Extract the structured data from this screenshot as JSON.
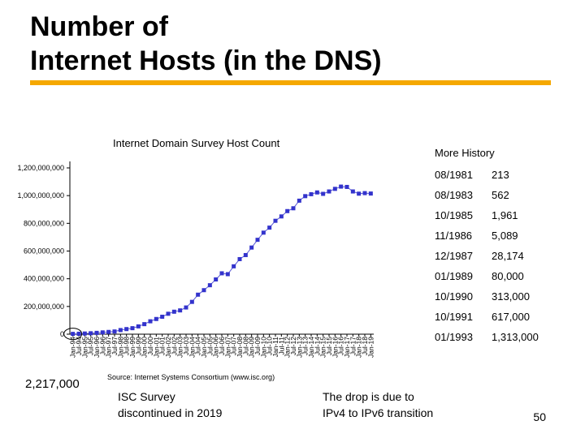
{
  "slide": {
    "title_line1": "Number of",
    "title_line2": "Internet Hosts (in the DNS)",
    "accent_color": "#f5a800",
    "page_number": "50"
  },
  "notes": {
    "peak_value": "2,217,000",
    "isc_note_line1": "ISC Survey",
    "isc_note_line2": "discontinued in 2019",
    "drop_note_line1": "The drop is due to",
    "drop_note_line2": "IPv4 to IPv6 transition"
  },
  "history": {
    "title": "More History",
    "rows": [
      {
        "date": "08/1981",
        "value": "213"
      },
      {
        "date": "08/1983",
        "value": "562"
      },
      {
        "date": "10/1985",
        "value": "1,961"
      },
      {
        "date": "11/1986",
        "value": "5,089"
      },
      {
        "date": "12/1987",
        "value": "28,174"
      },
      {
        "date": "01/1989",
        "value": "80,000"
      },
      {
        "date": "10/1990",
        "value": "313,000"
      },
      {
        "date": "10/1991",
        "value": "617,000"
      },
      {
        "date": "01/1993",
        "value": "1,313,000"
      }
    ]
  },
  "chart_data": {
    "type": "line",
    "title": "Internet Domain Survey Host Count",
    "source": "Source: Internet Systems Consortium (www.isc.org)",
    "xlabel": "",
    "ylabel": "",
    "ylim": [
      0,
      1200000000
    ],
    "yticks": [
      0,
      200000000,
      400000000,
      600000000,
      800000000,
      1000000000,
      1200000000
    ],
    "ytick_labels": [
      "0",
      "200,000,000",
      "400,000,000",
      "600,000,000",
      "800,000,000",
      "1,000,000,000",
      "1,200,000,000"
    ],
    "marker_color": "#3333cc",
    "line_color": "#5a5ad6",
    "series": [
      {
        "x": [
          "Jan-94",
          "Jul-94",
          "Jan-95",
          "Jul-95",
          "Jan-96",
          "Jul-96",
          "Jan-97",
          "Jul-97",
          "Jan-98",
          "Jul-98",
          "Jan-99",
          "Jul-99",
          "Jan-00",
          "Jul-00",
          "Jan-01",
          "Jul-01",
          "Jan-02",
          "Jul-02",
          "Jan-03",
          "Jul-03",
          "Jan-04",
          "Jul-04",
          "Jan-05",
          "Jul-05",
          "Jan-06",
          "Jul-06",
          "Jan-07",
          "Jul-07",
          "Jan-08",
          "Jul-08",
          "Jan-09",
          "Jul-09",
          "Jan-10",
          "Jul-10",
          "Jan-11",
          "Jul-11",
          "Jan-12",
          "Jul-12",
          "Jan-13",
          "Jul-13",
          "Jan-14",
          "Jul-14",
          "Jan-15",
          "Jul-15",
          "Jan-16",
          "Jul-16",
          "Jan-17",
          "Jul-17",
          "Jan-18",
          "Jul-18",
          "Jan-19"
        ],
        "values": [
          2217000,
          3212000,
          4852000,
          6642000,
          9472000,
          12881000,
          16146000,
          19540000,
          29670000,
          36739000,
          43230000,
          56218000,
          72398000,
          93047000,
          109574000,
          125888000,
          147345000,
          162128000,
          171638000,
          192663000,
          233101000,
          285139000,
          317646000,
          353284000,
          394991000,
          439286000,
          433193000,
          489775000,
          541677000,
          570937000,
          625226000,
          681064000,
          732740000,
          768914000,
          818374000,
          849869000,
          888239000,
          908585000,
          963518000,
          996230000,
          1010251000,
          1023000000,
          1012706000,
          1030000000,
          1048766000,
          1065000000,
          1062660000,
          1030000000,
          1014000000,
          1018000000,
          1015000000
        ]
      }
    ],
    "grid": false,
    "legend": "none"
  }
}
